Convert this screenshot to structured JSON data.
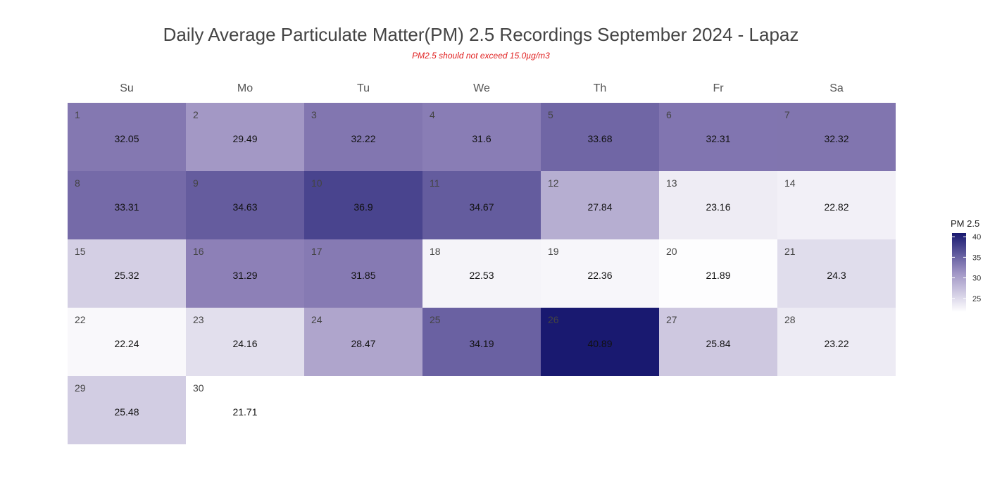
{
  "chart_data": {
    "type": "heatmap",
    "title": "Daily Average Particulate Matter(PM) 2.5 Recordings September 2024 -  Lapaz",
    "subtitle": "PM2.5 should not exceed 15.0µg/m3",
    "weekdays": [
      "Su",
      "Mo",
      "Tu",
      "We",
      "Th",
      "Fr",
      "Sa"
    ],
    "first_weekday_index": 0,
    "days": [
      {
        "day": "1",
        "value": 32.05
      },
      {
        "day": "2",
        "value": 29.49
      },
      {
        "day": "3",
        "value": 32.22
      },
      {
        "day": "4",
        "value": 31.6
      },
      {
        "day": "5",
        "value": 33.68
      },
      {
        "day": "6",
        "value": 32.31
      },
      {
        "day": "7",
        "value": 32.32
      },
      {
        "day": "8",
        "value": 33.31
      },
      {
        "day": "9",
        "value": 34.63
      },
      {
        "day": "10",
        "value": 36.9
      },
      {
        "day": "11",
        "value": 34.67
      },
      {
        "day": "12",
        "value": 27.84
      },
      {
        "day": "13",
        "value": 23.16
      },
      {
        "day": "14",
        "value": 22.82
      },
      {
        "day": "15",
        "value": 25.32
      },
      {
        "day": "16",
        "value": 31.29
      },
      {
        "day": "17",
        "value": 31.85
      },
      {
        "day": "18",
        "value": 22.53
      },
      {
        "day": "19",
        "value": 22.36
      },
      {
        "day": "20",
        "value": 21.89
      },
      {
        "day": "21",
        "value": 24.3
      },
      {
        "day": "22",
        "value": 22.24
      },
      {
        "day": "23",
        "value": 24.16
      },
      {
        "day": "24",
        "value": 28.47
      },
      {
        "day": "25",
        "value": 34.19
      },
      {
        "day": "26",
        "value": 40.89
      },
      {
        "day": "27",
        "value": 25.84
      },
      {
        "day": "28",
        "value": 23.22
      },
      {
        "day": "29",
        "value": 25.48
      },
      {
        "day": "30",
        "value": 21.71
      }
    ],
    "legend": {
      "title": "PM 2.5",
      "ticks": [
        "40",
        "35",
        "30",
        "25"
      ],
      "tick_values": [
        40,
        35,
        30,
        25
      ],
      "range": [
        21.71,
        40.89
      ],
      "placement": "right"
    },
    "color_scale": {
      "low": "#ffffff",
      "mid": "#8d80b7",
      "high": "#191970"
    },
    "title_color": "#444444",
    "subtitle_color": "#e02020"
  }
}
